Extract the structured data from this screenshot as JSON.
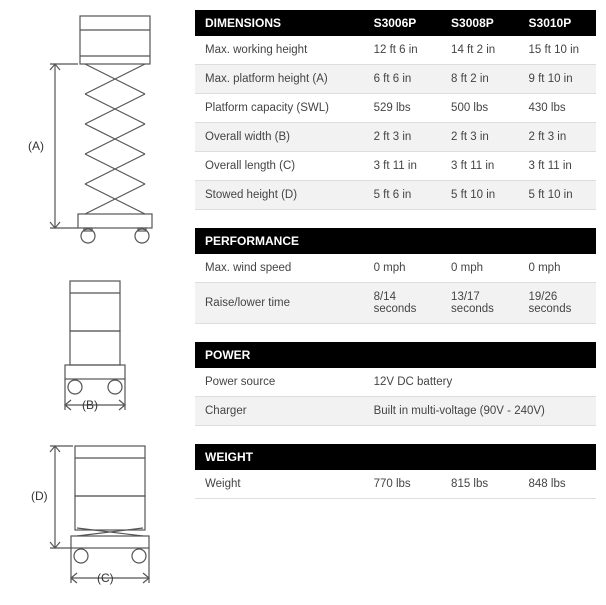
{
  "colors": {
    "header_bg": "#000000",
    "header_text": "#ffffff",
    "row_alt_bg": "#f2f2f2",
    "border": "#dddddd",
    "text": "#444444",
    "diagram_stroke": "#555555"
  },
  "models": [
    "S3006P",
    "S3008P",
    "S3010P"
  ],
  "sections": [
    {
      "title": "DIMENSIONS",
      "has_model_headers": true,
      "rows": [
        {
          "label": "Max. working height",
          "values": [
            "12 ft 6 in",
            "14 ft 2 in",
            "15 ft 10 in"
          ],
          "alt": false
        },
        {
          "label": "Max. platform height (A)",
          "values": [
            "6 ft 6 in",
            "8 ft 2 in",
            "9 ft 10 in"
          ],
          "alt": true
        },
        {
          "label": "Platform capacity (SWL)",
          "values": [
            "529 lbs",
            "500 lbs",
            "430 lbs"
          ],
          "alt": false
        },
        {
          "label": "Overall width (B)",
          "values": [
            "2 ft 3 in",
            "2 ft 3 in",
            "2 ft 3 in"
          ],
          "alt": true
        },
        {
          "label": "Overall length (C)",
          "values": [
            "3 ft 11 in",
            "3 ft 11 in",
            "3 ft 11 in"
          ],
          "alt": false
        },
        {
          "label": "Stowed height (D)",
          "values": [
            "5 ft 6 in",
            "5 ft 10 in",
            "5 ft 10 in"
          ],
          "alt": true
        }
      ]
    },
    {
      "title": "PERFORMANCE",
      "has_model_headers": false,
      "rows": [
        {
          "label": "Max. wind speed",
          "values": [
            "0 mph",
            "0 mph",
            "0 mph"
          ],
          "alt": false
        },
        {
          "label": "Raise/lower time",
          "values": [
            "8/14 seconds",
            "13/17 seconds",
            "19/26 seconds"
          ],
          "alt": true
        }
      ]
    },
    {
      "title": "POWER",
      "has_model_headers": false,
      "rows": [
        {
          "label": "Power source",
          "values": [
            "12V DC battery"
          ],
          "span": 3,
          "alt": false
        },
        {
          "label": "Charger",
          "values": [
            "Built in multi-voltage (90V - 240V)"
          ],
          "span": 3,
          "alt": true
        }
      ]
    },
    {
      "title": "WEIGHT",
      "has_model_headers": false,
      "rows": [
        {
          "label": "Weight",
          "values": [
            "770 lbs",
            "815 lbs",
            "848 lbs"
          ],
          "alt": false
        }
      ]
    }
  ],
  "diagrams": {
    "labels": {
      "A": "(A)",
      "B": "(B)",
      "C": "(C)",
      "D": "(D)"
    }
  }
}
